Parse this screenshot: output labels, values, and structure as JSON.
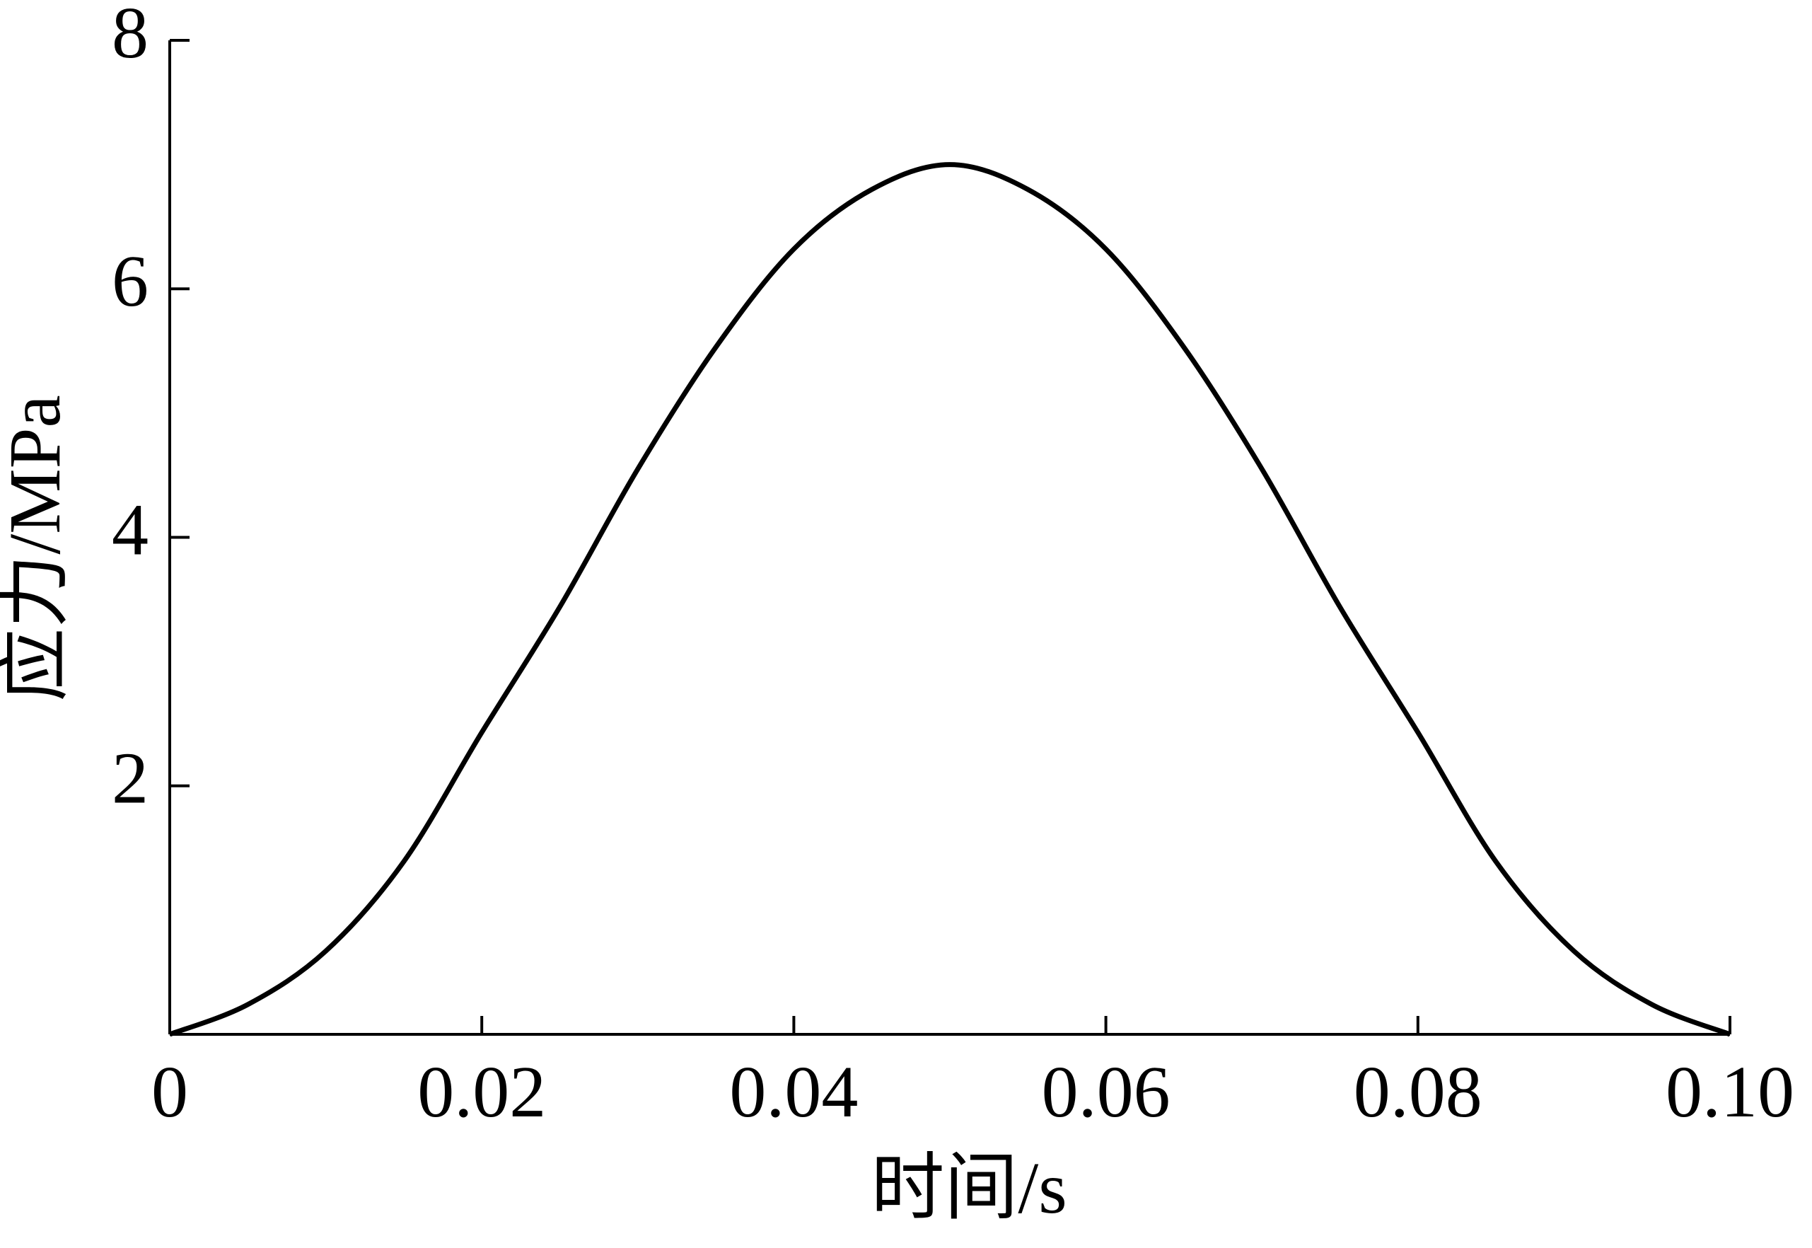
{
  "chart_data": {
    "type": "line",
    "x_label": "时间/s",
    "y_label": "应力/MPa",
    "x": [
      0,
      0.005,
      0.01,
      0.015,
      0.02,
      0.025,
      0.03,
      0.035,
      0.04,
      0.045,
      0.05,
      0.055,
      0.06,
      0.065,
      0.07,
      0.075,
      0.08,
      0.085,
      0.09,
      0.095,
      0.1
    ],
    "series": [
      {
        "color": "#000000",
        "values": [
          0,
          0.24,
          0.67,
          1.39,
          2.43,
          3.44,
          4.55,
          5.53,
          6.32,
          6.8,
          7.0,
          6.8,
          6.32,
          5.53,
          4.55,
          3.44,
          2.43,
          1.39,
          0.67,
          0.24,
          0
        ]
      }
    ],
    "xlim": [
      0,
      0.1
    ],
    "ylim": [
      0,
      8
    ],
    "xticks": [
      0,
      0.02,
      0.04,
      0.06,
      0.08,
      {
        "value": 0.1,
        "label": "0.10"
      }
    ],
    "yticks": [
      2,
      4,
      6,
      8
    ],
    "grid": false
  }
}
